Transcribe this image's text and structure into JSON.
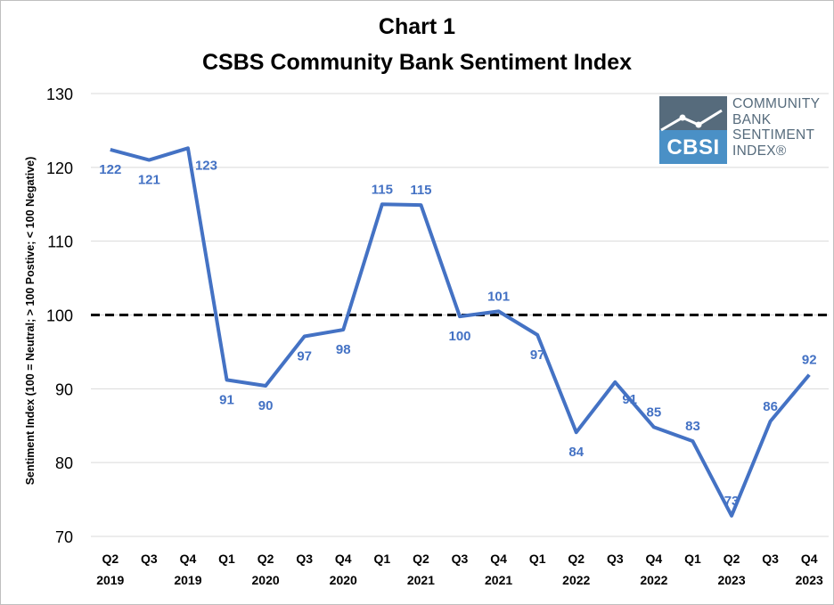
{
  "titles": {
    "line1": "Chart 1",
    "line2": "CSBS Community Bank Sentiment Index"
  },
  "logo": {
    "abbr": "CBSI",
    "words": [
      "COMMUNITY",
      "BANK",
      "SENTIMENT",
      "INDEX®"
    ],
    "colors": {
      "dark": "#566b7c",
      "light": "#4a90c6"
    }
  },
  "chart_data": {
    "type": "line",
    "title": "CSBS Community Bank Sentiment Index",
    "ylabel": "Sentiment Index (100 = Neutral; > 100 Postive; < 100 Negative)",
    "xlabel": "",
    "ylim": [
      70,
      130
    ],
    "yticks": [
      70,
      80,
      90,
      100,
      110,
      120,
      130
    ],
    "grid": true,
    "legend": "none",
    "reference_line": {
      "value": 100,
      "style": "dashed",
      "color": "#000000"
    },
    "categories": [
      [
        "Q2",
        "2019"
      ],
      [
        "Q3",
        ""
      ],
      [
        "Q4",
        "2019"
      ],
      [
        "Q1",
        ""
      ],
      [
        "Q2",
        "2020"
      ],
      [
        "Q3",
        ""
      ],
      [
        "Q4",
        "2020"
      ],
      [
        "Q1",
        ""
      ],
      [
        "Q2",
        "2021"
      ],
      [
        "Q3",
        ""
      ],
      [
        "Q4",
        "2021"
      ],
      [
        "Q1",
        ""
      ],
      [
        "Q2",
        "2022"
      ],
      [
        "Q3",
        ""
      ],
      [
        "Q4",
        "2022"
      ],
      [
        "Q1",
        ""
      ],
      [
        "Q2",
        "2023"
      ],
      [
        "Q3",
        ""
      ],
      [
        "Q4",
        "2023"
      ]
    ],
    "series": [
      {
        "color": "#4472c4",
        "values": [
          122.4,
          121.0,
          122.6,
          91.2,
          90.4,
          97.1,
          98.0,
          115.0,
          114.9,
          99.8,
          100.5,
          97.3,
          84.1,
          90.9,
          84.8,
          82.9,
          72.8,
          85.6,
          91.9
        ],
        "labels": [
          "122",
          "121",
          "123",
          "91",
          "90",
          "97",
          "98",
          "115",
          "115",
          "100",
          "101",
          "97",
          "84",
          "91",
          "85",
          "83",
          "73",
          "86",
          "92"
        ],
        "label_pos": [
          "below",
          "below",
          "right",
          "below",
          "below",
          "below",
          "below",
          "above",
          "above",
          "below",
          "above",
          "below",
          "below",
          "right",
          "above",
          "above",
          "above",
          "above",
          "above"
        ]
      }
    ]
  }
}
